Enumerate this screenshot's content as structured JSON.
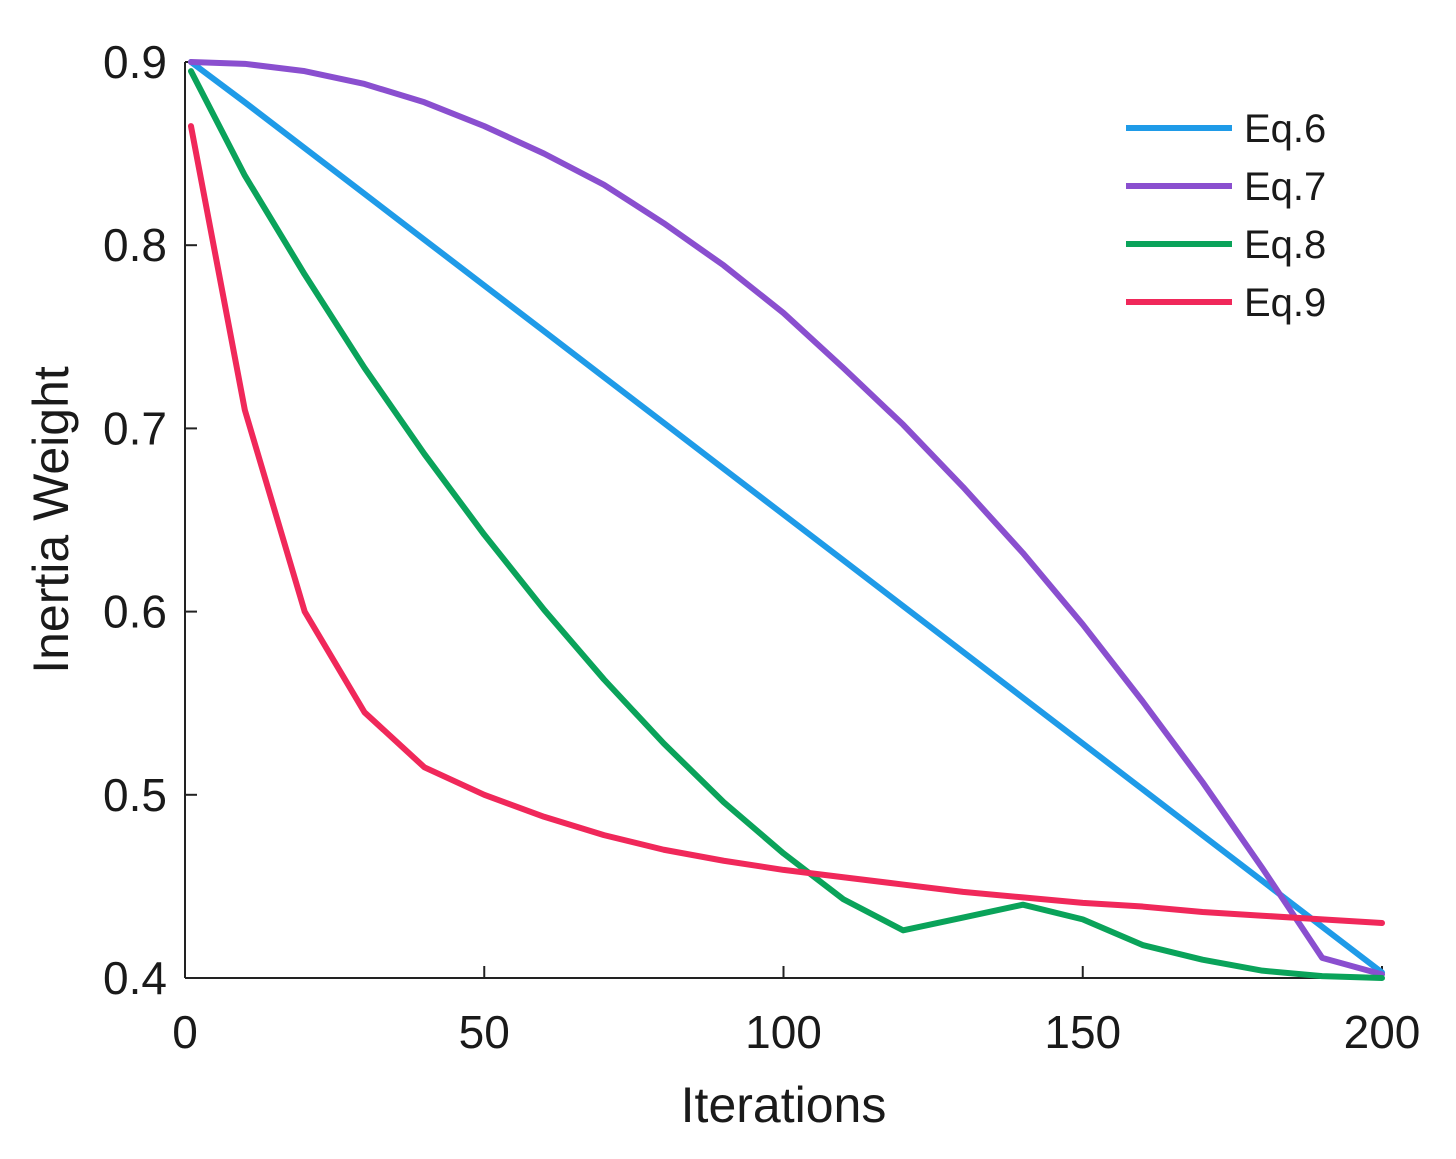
{
  "chart_data": {
    "type": "line",
    "title": "",
    "xlabel": "Iterations",
    "ylabel": "Inertia Weight",
    "xlim": [
      0,
      200
    ],
    "ylim": [
      0.4,
      0.9
    ],
    "xticks": [
      0,
      50,
      100,
      150,
      200
    ],
    "xtick_labels": [
      "0",
      "50",
      "100",
      "150",
      "200"
    ],
    "yticks": [
      0.4,
      0.5,
      0.6,
      0.7,
      0.8,
      0.9
    ],
    "ytick_labels": [
      "0.4",
      "0.5",
      "0.6",
      "0.7",
      "0.8",
      "0.9"
    ],
    "grid": false,
    "legend_position": "top-right",
    "x": [
      1,
      10,
      20,
      30,
      40,
      50,
      60,
      70,
      80,
      90,
      100,
      110,
      120,
      130,
      140,
      150,
      160,
      170,
      180,
      190,
      200
    ],
    "series": [
      {
        "name": "Eq.6",
        "color": "#1f9be8",
        "values": [
          0.9,
          0.878,
          0.853,
          0.828,
          0.803,
          0.778,
          0.753,
          0.728,
          0.703,
          0.678,
          0.653,
          0.628,
          0.603,
          0.578,
          0.553,
          0.528,
          0.503,
          0.478,
          0.453,
          0.428,
          0.403
        ]
      },
      {
        "name": "Eq.7",
        "color": "#8a4fcf",
        "values": [
          0.9,
          0.899,
          0.895,
          0.888,
          0.878,
          0.865,
          0.85,
          0.833,
          0.812,
          0.789,
          0.763,
          0.733,
          0.702,
          0.668,
          0.632,
          0.593,
          0.551,
          0.507,
          0.46,
          0.411,
          0.402
        ]
      },
      {
        "name": "Eq.8",
        "color": "#0aa35a",
        "values": [
          0.895,
          0.838,
          0.784,
          0.733,
          0.686,
          0.642,
          0.601,
          0.563,
          0.528,
          0.496,
          0.468,
          0.443,
          0.426,
          0.433,
          0.44,
          0.432,
          0.418,
          0.41,
          0.404,
          0.401,
          0.4
        ]
      },
      {
        "name": "Eq.9",
        "color": "#f0285a",
        "values": [
          0.865,
          0.71,
          0.6,
          0.545,
          0.515,
          0.5,
          0.488,
          0.478,
          0.47,
          0.464,
          0.459,
          0.455,
          0.451,
          0.447,
          0.444,
          0.441,
          0.439,
          0.436,
          0.434,
          0.432,
          0.43
        ]
      }
    ]
  }
}
